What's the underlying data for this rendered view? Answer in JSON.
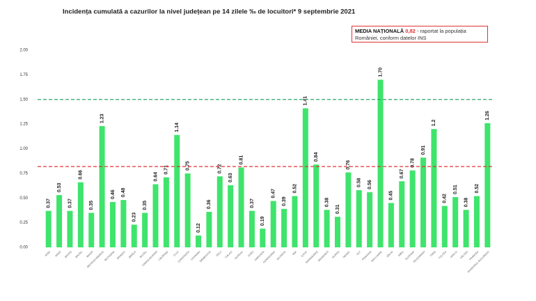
{
  "chart_data": {
    "type": "bar",
    "title": "Incidența cumulată a cazurilor la nivel județean pe 14 zilele ‰ de locuitori* 9 septembrie 2021",
    "annotation": {
      "label": "MEDIA NAȚIONALĂ",
      "value": "0,82",
      "text": "- raportat la populația României, conform datelor INS"
    },
    "categories": [
      "Alba",
      "Arad",
      "Argeș",
      "Bacău",
      "Bihor",
      "Bistrița-Năsăud",
      "Botoșani",
      "Brașov",
      "Brăila",
      "Buzău",
      "Caraș-Severin",
      "Călărași",
      "Cluj",
      "Constanța",
      "Covasna",
      "Dâmbovița",
      "Dolj",
      "Galați",
      "Giurgiu",
      "Gorj",
      "Harghita",
      "Hunedoara",
      "Ialomița",
      "Iași",
      "Ilfov",
      "Maramureș",
      "Mehedinți",
      "Mureș",
      "Neamț",
      "Olt",
      "Prahova",
      "Satu Mare",
      "Sălaj",
      "Sibiu",
      "Suceava",
      "Teleorman",
      "Timiș",
      "Tulcea",
      "Vaslui",
      "Vâlcea",
      "Vrancea",
      "Municipiul București"
    ],
    "values": [
      0.37,
      0.53,
      0.37,
      0.66,
      0.35,
      1.23,
      0.46,
      0.48,
      0.23,
      0.35,
      0.64,
      0.71,
      1.14,
      0.75,
      0.12,
      0.36,
      0.72,
      0.63,
      0.81,
      0.37,
      0.19,
      0.47,
      0.39,
      0.52,
      1.41,
      0.84,
      0.38,
      0.31,
      0.76,
      0.58,
      0.56,
      1.7,
      0.45,
      0.67,
      0.78,
      0.91,
      1.2,
      0.42,
      0.51,
      0.38,
      0.52,
      1.26
    ],
    "value_labels": [
      "0.37",
      "0.53",
      "0.37",
      "0.66",
      "0.35",
      "1.23",
      "0.46",
      "0.48",
      "0.23",
      "0.35",
      "0.64",
      "0.71",
      "1.14",
      "0.75",
      "0.12",
      "0.36",
      "0.72",
      "0.63",
      "0.81",
      "0.37",
      "0.19",
      "0.47",
      "0.39",
      "0.52",
      "1.41",
      "0.84",
      "0.38",
      "0.31",
      "0.76",
      "0.58",
      "0.56",
      "1.70",
      "0.45",
      "0.67",
      "0.78",
      "0.91",
      "1.2",
      "0.42",
      "0.51",
      "0.38",
      "0.52",
      "1.26"
    ],
    "color": "#3fe46c",
    "ylim": [
      0,
      2
    ],
    "yticks": [
      {
        "value": 0,
        "label": "0.00"
      },
      {
        "value": 0.25,
        "label": "0.25"
      },
      {
        "value": 0.5,
        "label": "0.50"
      },
      {
        "value": 0.75,
        "label": "0.75"
      },
      {
        "value": 1,
        "label": "1.00"
      },
      {
        "value": 1.25,
        "label": "1.25"
      },
      {
        "value": 1.5,
        "label": "1.50"
      },
      {
        "value": 1.75,
        "label": "1.75"
      },
      {
        "value": 2,
        "label": "2.00"
      }
    ],
    "reference_lines": [
      {
        "value": 1.5,
        "color": "#2aa86a"
      },
      {
        "value": 0.82,
        "color": "#e03030"
      }
    ],
    "grid": false
  }
}
